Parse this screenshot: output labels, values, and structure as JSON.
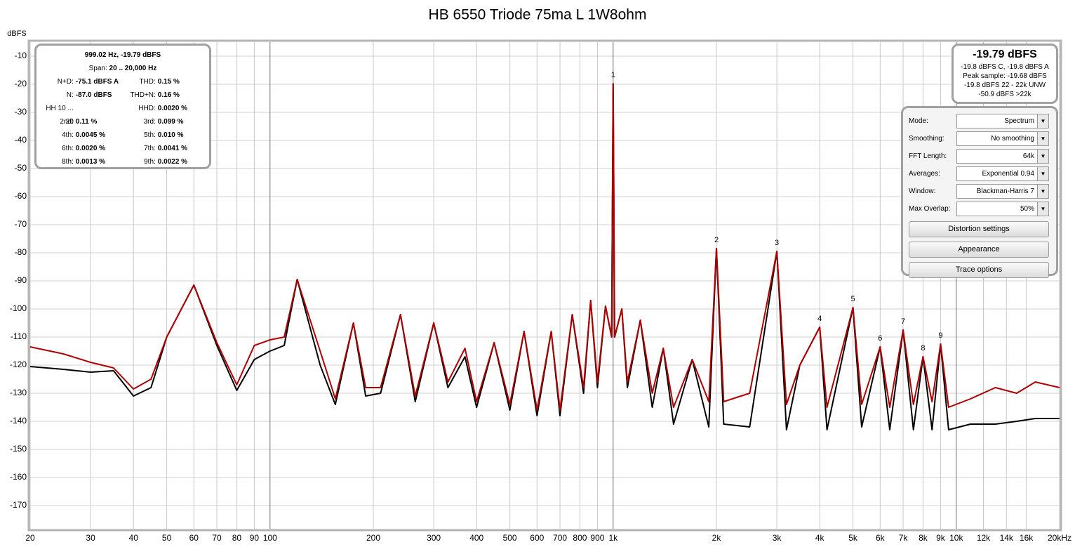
{
  "chart_data": {
    "type": "line",
    "title": "HB 6550 Triode 75ma L 1W8ohm",
    "y_label": "dBFS",
    "log_x": true,
    "grid": true,
    "xlim": [
      20,
      20000
    ],
    "ylim": [
      -178.25,
      -5
    ],
    "yticks": [
      -10,
      -20,
      -30,
      -40,
      -50,
      -60,
      -70,
      -80,
      -90,
      -100,
      -110,
      -120,
      -130,
      -140,
      -150,
      -160,
      -170
    ],
    "xticks": [
      20,
      30,
      40,
      50,
      60,
      70,
      80,
      90,
      100,
      200,
      300,
      400,
      500,
      600,
      700,
      800,
      900,
      {
        "value": 1000,
        "label": "1k"
      },
      {
        "value": 2000,
        "label": "2k"
      },
      {
        "value": 3000,
        "label": "3k"
      },
      {
        "value": 4000,
        "label": "4k"
      },
      {
        "value": 5000,
        "label": "5k"
      },
      {
        "value": 6000,
        "label": "6k"
      },
      {
        "value": 7000,
        "label": "7k"
      },
      {
        "value": 8000,
        "label": "8k"
      },
      {
        "value": 9000,
        "label": "9k"
      },
      {
        "value": 10000,
        "label": "10k"
      },
      {
        "value": 12000,
        "label": "12k"
      },
      {
        "value": 14000,
        "label": "14k"
      },
      {
        "value": 16000,
        "label": "16k"
      },
      {
        "value": 20000,
        "label": "20kHz"
      }
    ],
    "x": [
      20,
      25,
      30,
      35,
      40,
      45,
      50,
      60,
      70,
      80,
      90,
      100,
      110,
      120,
      140,
      155,
      175,
      190,
      210,
      240,
      265,
      300,
      330,
      370,
      400,
      450,
      500,
      550,
      600,
      660,
      700,
      760,
      820,
      860,
      900,
      950,
      990,
      1000,
      1010,
      1060,
      1100,
      1200,
      1300,
      1400,
      1500,
      1700,
      1900,
      2000,
      2100,
      2500,
      3000,
      3200,
      3500,
      4000,
      4200,
      5000,
      5300,
      6000,
      6400,
      7000,
      7500,
      8000,
      8500,
      9000,
      9500,
      11000,
      13000,
      15000,
      17000,
      20000
    ],
    "series": [
      {
        "color": "#000000",
        "values": [
          -120.5,
          -121.5,
          -122.5,
          -122,
          -131,
          -128,
          -110,
          -91.5,
          -113,
          -129,
          -118,
          -115,
          -113,
          -89.5,
          -120,
          -134,
          -105,
          -131,
          -130,
          -102,
          -133,
          -105,
          -128,
          -117,
          -135,
          -112,
          -136,
          -108,
          -138,
          -108,
          -138,
          -102,
          -130,
          -97,
          -128,
          -99,
          -110,
          -19.8,
          -110,
          -100,
          -128,
          -104,
          -135,
          -114,
          -141,
          -118,
          -142,
          -78.5,
          -141,
          -142,
          -79.5,
          -143,
          -120,
          -106.5,
          -143,
          -99.5,
          -142,
          -113.5,
          -143,
          -107.5,
          -143,
          -117,
          -143,
          -112.5,
          -143,
          -141,
          -141,
          -140,
          -139,
          -139
        ]
      },
      {
        "color": "#b00000",
        "values": [
          -113.5,
          -116,
          -119,
          -121,
          -128.5,
          -125,
          -110,
          -91.5,
          -112,
          -127,
          -113,
          -111,
          -110,
          -89.5,
          -115,
          -132,
          -105,
          -128,
          -128,
          -102,
          -131,
          -105,
          -126,
          -114,
          -133,
          -112,
          -134,
          -108,
          -136,
          -108,
          -136,
          -102,
          -128,
          -97,
          -126,
          -99,
          -110,
          -19.8,
          -110,
          -100,
          -126,
          -104,
          -130,
          -114,
          -135,
          -118,
          -133,
          -78.5,
          -133,
          -130,
          -79.5,
          -134,
          -120,
          -106.5,
          -135,
          -99.5,
          -134,
          -113.5,
          -135,
          -107.5,
          -134,
          -117,
          -133,
          -112.5,
          -135,
          -132,
          -128,
          -130,
          -126,
          -128
        ]
      }
    ],
    "harmonic_labels": [
      "1",
      "2",
      "3",
      "4",
      "5",
      "6",
      "7",
      "8",
      "9"
    ],
    "harmonic_x": [
      1000,
      2000,
      3000,
      4000,
      5000,
      6000,
      7000,
      8000,
      9000
    ],
    "harmonic_y": [
      -19.8,
      -78.5,
      -79.5,
      -106.5,
      -99.5,
      -113.5,
      -107.5,
      -117,
      -112.5
    ]
  },
  "info_panel": {
    "header": "999.02 Hz, -19.79 dBFS",
    "span_label": "Span:",
    "span_value": "20 .. 20,000 Hz",
    "rows": [
      [
        {
          "label": "N+D:",
          "value": "-75.1 dBFS A"
        },
        {
          "label": "THD:",
          "value": "0.15 %"
        }
      ],
      [
        {
          "label": "N:",
          "value": "-87.0 dBFS"
        },
        {
          "label": "THD+N:",
          "value": "0.16 %"
        }
      ],
      [
        {
          "label": "HH 10 ... 20"
        },
        {
          "label": "HHD:",
          "value": "0.0020 %"
        }
      ],
      [
        {
          "label": "2nd:",
          "value": "0.11 %"
        },
        {
          "label": "3rd:",
          "value": "0.099 %"
        }
      ],
      [
        {
          "label": "4th:",
          "value": "0.0045 %"
        },
        {
          "label": "5th:",
          "value": "0.010 %"
        }
      ],
      [
        {
          "label": "6th:",
          "value": "0.0020 %"
        },
        {
          "label": "7th:",
          "value": "0.0041 %"
        }
      ],
      [
        {
          "label": "8th:",
          "value": "0.0013 %"
        },
        {
          "label": "9th:",
          "value": "0.0022 %"
        }
      ]
    ]
  },
  "level_panel": {
    "main": "-19.79 dBFS",
    "lines": [
      "-19.8 dBFS C, -19.8 dBFS A",
      "Peak sample: -19.68 dBFS",
      "-19.8 dBFS 22 - 22k UNW",
      "-50.9 dBFS >22k"
    ]
  },
  "controls": {
    "settings": [
      {
        "label": "Mode:",
        "value": "Spectrum"
      },
      {
        "label": "Smoothing:",
        "value": "No  smoothing"
      },
      {
        "label": "FFT Length:",
        "value": "64k"
      },
      {
        "label": "Averages:",
        "value": "Exponential 0.94"
      },
      {
        "label": "Window:",
        "value": "Blackman-Harris 7"
      },
      {
        "label": "Max Overlap:",
        "value": "50%"
      }
    ],
    "buttons": [
      "Distortion settings",
      "Appearance",
      "Trace options"
    ]
  }
}
